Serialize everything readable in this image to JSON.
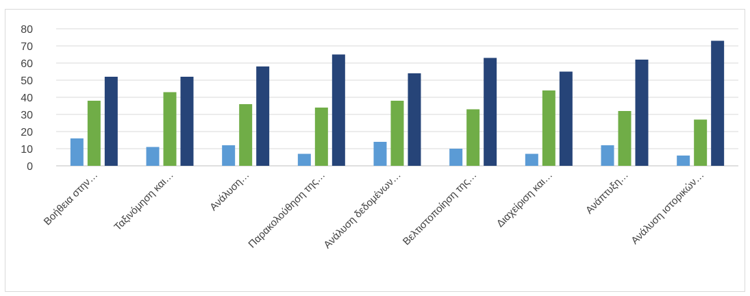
{
  "chart_data": {
    "type": "bar",
    "title": "",
    "xlabel": "",
    "ylabel": "",
    "ylim": [
      0,
      80
    ],
    "yticks": [
      0,
      10,
      20,
      30,
      40,
      50,
      60,
      70,
      80
    ],
    "grid": true,
    "legend": "none",
    "categories": [
      "Βοήθεια στην…",
      "Ταξινόμηση και…",
      "Ανάλυση…",
      "Παρακολούθηση της…",
      "Ανάλυση δεδομένων…",
      "Βελτιστοποίηση της…",
      "Διαχείριση και…",
      "Ανάπτυξη…",
      "Ανάλυση ιστορικών…"
    ],
    "series": [
      {
        "values": [
          16,
          11,
          12,
          7,
          14,
          10,
          7,
          12,
          6
        ],
        "color": "#5b9bd5"
      },
      {
        "values": [
          38,
          43,
          36,
          34,
          38,
          33,
          44,
          32,
          27
        ],
        "color": "#70ad47"
      },
      {
        "values": [
          52,
          52,
          58,
          65,
          54,
          63,
          55,
          62,
          73
        ],
        "color": "#264478"
      }
    ],
    "colors": {
      "gridline": "#d9d9d9",
      "axis": "#bfbfbf",
      "text": "#404040"
    }
  }
}
